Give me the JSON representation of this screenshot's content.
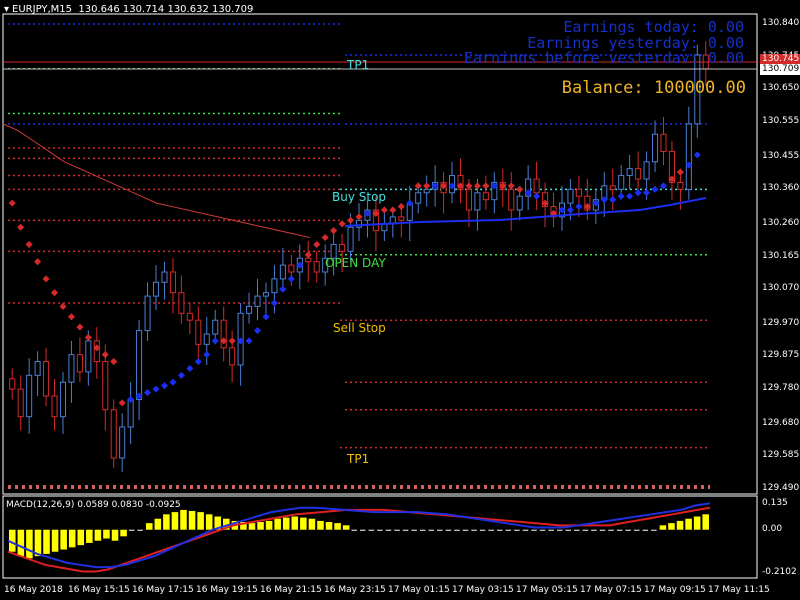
{
  "window": {
    "symbol_timeframe": "EURJPY,M15",
    "ohlc": "130.646 130.714 130.632 130.709"
  },
  "overlay": {
    "earnings_today": "Earnings today: 0.00",
    "earnings_yesterday": "Earnings yesterday: 0.00",
    "earnings_before_yesterday": "Earnings before yesterday: 0.00",
    "balance": "Balance: 100000.00"
  },
  "levels": {
    "tp1_top": "TP1",
    "buy_stop": "Buy Stop",
    "open_day": "OPEN DAY",
    "sell_stop": "Sell Stop",
    "tp1_bottom": "TP1"
  },
  "price_axis": {
    "ticks": [
      "130.840",
      "130.745",
      "130.650",
      "130.555",
      "130.455",
      "130.360",
      "130.260",
      "130.165",
      "130.070",
      "129.970",
      "129.875",
      "129.780",
      "129.680",
      "129.585",
      "129.490"
    ],
    "current_price_red": "130.745",
    "current_price": "130.709"
  },
  "macd": {
    "title": "MACD(12,26,9) 0.0589 0.0830 -0.0925",
    "ticks": [
      "0.135",
      "0.00",
      "-0.2102"
    ]
  },
  "time_axis": {
    "ticks": [
      "16 May 2018",
      "16 May 15:15",
      "16 May 17:15",
      "16 May 19:15",
      "16 May 21:15",
      "16 May 23:15",
      "17 May 01:15",
      "17 May 03:15",
      "17 May 05:15",
      "17 May 07:15",
      "17 May 09:15",
      "17 May 11:15"
    ]
  },
  "colors": {
    "background": "#000000",
    "bull": "#4a7fd4",
    "bear": "#d42a2a",
    "psar": "#1a2ff0",
    "tp": "#f0e040",
    "buy_stop": "#40e0e0",
    "open_day": "#40e040",
    "sell_stop": "#f0c000",
    "macd_hist": "#ffff00"
  },
  "chart_data": {
    "type": "candlestick",
    "symbol": "EURJPY",
    "timeframe": "M15",
    "y_range": [
      129.49,
      130.84
    ],
    "macd_range": [
      -0.2102,
      0.135
    ],
    "close_series": [
      129.78,
      129.7,
      129.82,
      129.86,
      129.76,
      129.7,
      129.8,
      129.88,
      129.83,
      129.92,
      129.86,
      129.72,
      129.58,
      129.67,
      129.75,
      129.95,
      130.05,
      130.09,
      130.12,
      130.06,
      130.0,
      129.98,
      129.91,
      129.94,
      129.98,
      129.9,
      129.85,
      130.0,
      130.02,
      130.05,
      130.06,
      130.1,
      130.14,
      130.12,
      130.16,
      130.15,
      130.12,
      130.16,
      130.2,
      130.18,
      130.25,
      130.27,
      130.3,
      130.24,
      130.26,
      130.28,
      130.27,
      130.32,
      130.35,
      130.36,
      130.38,
      130.35,
      130.4,
      130.36,
      130.3,
      130.35,
      130.33,
      130.38,
      130.36,
      130.3,
      130.34,
      130.39,
      130.35,
      130.31,
      130.28,
      130.32,
      130.36,
      130.34,
      130.3,
      130.33,
      130.37,
      130.36,
      130.4,
      130.42,
      130.39,
      130.44,
      130.52,
      130.47,
      130.38,
      130.36,
      130.55,
      130.75,
      130.71
    ],
    "psar_series": [
      130.32,
      130.25,
      130.2,
      130.15,
      130.1,
      130.06,
      130.02,
      129.99,
      129.96,
      129.93,
      129.9,
      129.88,
      129.86,
      129.74,
      129.75,
      129.76,
      129.77,
      129.78,
      129.79,
      129.8,
      129.82,
      129.84,
      129.86,
      129.88,
      129.92,
      129.92,
      129.92,
      129.92,
      129.92,
      129.95,
      129.99,
      130.03,
      130.07,
      130.1,
      130.14,
      130.17,
      130.2,
      130.22,
      130.24,
      130.26,
      130.27,
      130.28,
      130.29,
      130.29,
      130.3,
      130.3,
      130.31,
      130.32,
      130.37,
      130.37,
      130.37,
      130.37,
      130.37,
      130.37,
      130.37,
      130.37,
      130.37,
      130.37,
      130.37,
      130.37,
      130.36,
      130.35,
      130.34,
      130.32,
      130.29,
      130.3,
      130.3,
      130.31,
      130.31,
      130.32,
      130.33,
      130.33,
      130.34,
      130.34,
      130.35,
      130.35,
      130.36,
      130.37,
      130.39,
      130.41,
      130.43,
      130.46
    ],
    "ma_series": [
      130.55,
      130.53,
      130.5,
      130.47,
      130.44,
      130.42,
      130.4,
      130.38,
      130.36,
      130.34,
      130.32,
      130.31,
      130.3,
      130.29,
      130.28,
      130.27,
      130.26,
      130.25,
      130.24,
      130.23,
      130.22
    ],
    "levels": {
      "tp1_top": 130.71,
      "buy_stop": 130.36,
      "open_day": 130.17,
      "sell_stop": 129.98,
      "tp1_bottom": 129.61
    },
    "macd_hist": [
      -0.1,
      -0.12,
      -0.13,
      -0.12,
      -0.11,
      -0.1,
      -0.09,
      -0.08,
      -0.07,
      -0.06,
      -0.05,
      -0.04,
      -0.05,
      -0.03,
      -0.01,
      0.01,
      0.03,
      0.05,
      0.07,
      0.08,
      0.09,
      0.085,
      0.08,
      0.07,
      0.06,
      0.05,
      0.04,
      0.035,
      0.03,
      0.035,
      0.04,
      0.05,
      0.055,
      0.06,
      0.055,
      0.05,
      0.04,
      0.035,
      0.03,
      0.02,
      0.01,
      -0.005,
      -0.01,
      -0.012,
      -0.015,
      -0.015,
      -0.015,
      -0.015,
      -0.015,
      -0.015,
      -0.015,
      -0.015,
      -0.015,
      -0.015,
      -0.015,
      -0.015,
      -0.015,
      -0.015,
      -0.015,
      -0.015,
      -0.015,
      -0.015,
      -0.015,
      -0.015,
      -0.015,
      -0.015,
      -0.015,
      -0.015,
      -0.015,
      -0.015,
      -0.015,
      -0.015,
      -0.015,
      -0.015,
      -0.015,
      -0.015,
      0.02,
      0.03,
      0.04,
      0.05,
      0.06,
      0.07
    ],
    "macd_signal": [
      -0.1,
      -0.12,
      -0.14,
      -0.16,
      -0.17,
      -0.18,
      -0.19,
      -0.19,
      -0.18,
      -0.16,
      -0.14,
      -0.12,
      -0.1,
      -0.08,
      -0.06,
      -0.04,
      -0.02,
      0.0,
      0.02,
      0.03,
      0.04,
      0.05,
      0.06,
      0.07,
      0.075,
      0.08,
      0.085,
      0.09,
      0.09,
      0.09,
      0.09,
      0.085,
      0.08,
      0.075,
      0.07,
      0.065,
      0.06,
      0.055,
      0.05,
      0.045,
      0.04,
      0.035,
      0.03,
      0.025,
      0.02,
      0.02,
      0.02,
      0.02,
      0.02,
      0.03,
      0.04,
      0.05,
      0.06,
      0.07,
      0.08,
      0.09,
      0.1
    ],
    "macd_line": [
      -0.05,
      -0.08,
      -0.11,
      -0.13,
      -0.15,
      -0.16,
      -0.17,
      -0.17,
      -0.16,
      -0.14,
      -0.12,
      -0.09,
      -0.06,
      -0.03,
      0.0,
      0.02,
      0.04,
      0.06,
      0.08,
      0.09,
      0.1,
      0.1,
      0.095,
      0.09,
      0.085,
      0.08,
      0.08,
      0.08,
      0.08,
      0.075,
      0.07,
      0.06,
      0.05,
      0.04,
      0.03,
      0.02,
      0.01,
      0.01,
      0.01,
      0.02,
      0.03,
      0.04,
      0.05,
      0.06,
      0.07,
      0.08,
      0.09,
      0.11,
      0.12
    ]
  }
}
